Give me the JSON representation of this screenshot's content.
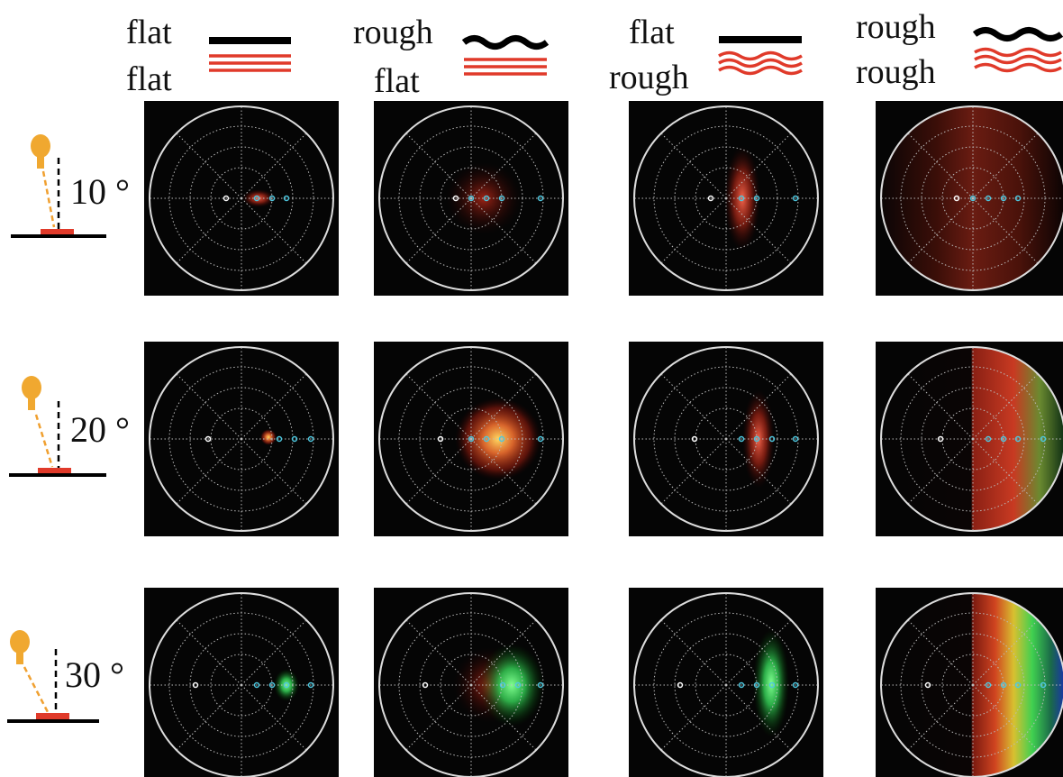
{
  "columns": [
    {
      "top": "flat",
      "bottom": "flat"
    },
    {
      "top": "rough",
      "bottom": "flat"
    },
    {
      "top": "flat",
      "bottom": "rough"
    },
    {
      "top": "rough",
      "bottom": "rough"
    }
  ],
  "rows": [
    {
      "angle": "10 °"
    },
    {
      "angle": "20 °"
    },
    {
      "angle": "30 °"
    }
  ]
}
